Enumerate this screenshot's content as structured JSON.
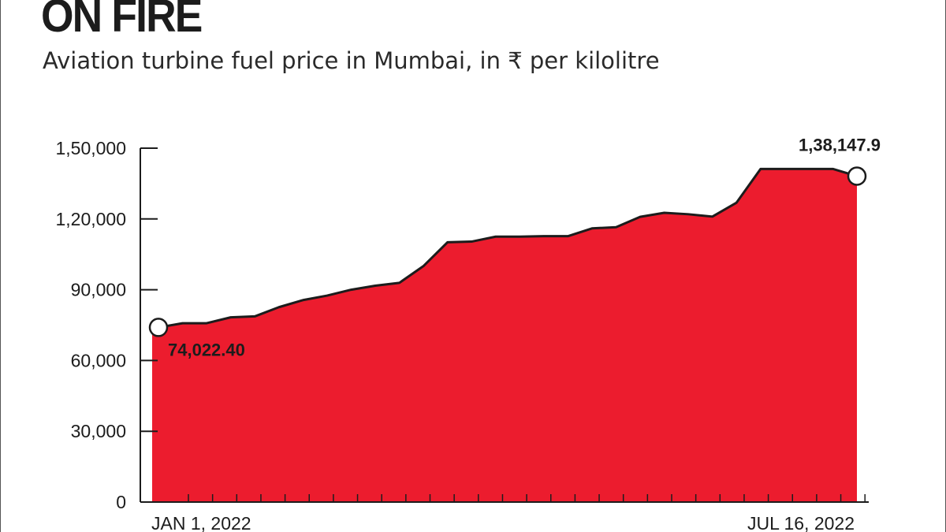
{
  "header": {
    "title": "ON FIRE",
    "subtitle": "Aviation turbine fuel price in Mumbai, in ₹ per kilolitre"
  },
  "colors": {
    "fill": "#ec1c2e",
    "line": "#1c1c1c",
    "marker_fill": "#ffffff"
  },
  "chart_data": {
    "type": "area",
    "title": "ON FIRE",
    "subtitle": "Aviation turbine fuel price in Mumbai, in ₹ per kilolitre",
    "xlabel": "",
    "ylabel": "",
    "ylim": [
      0,
      150000
    ],
    "yticks": [
      0,
      30000,
      60000,
      90000,
      120000,
      150000
    ],
    "ytick_labels": [
      "0",
      "30,000",
      "60,000",
      "90,000",
      "120,000",
      "150,000"
    ],
    "ytick_labels_display": [
      "0",
      "30,000",
      "60,000",
      "90,000",
      "1,20,000",
      "1,50,000"
    ],
    "x_labels": [
      "JAN 1, 2022",
      "JUL 16, 2022"
    ],
    "grid": false,
    "legend": "none",
    "series": [
      {
        "values": [
          74022.4,
          75800,
          75800,
          78300,
          78700,
          82600,
          85600,
          87500,
          90000,
          91700,
          92900,
          100000,
          110100,
          110400,
          112500,
          112500,
          112700,
          112700,
          116000,
          116500,
          120900,
          122600,
          122000,
          121000,
          126900,
          141200,
          141200,
          141200,
          141200,
          138147.9
        ]
      }
    ],
    "annotations": [
      {
        "text": "74,022.40",
        "index": 0,
        "value": 74022.4
      },
      {
        "text": "1,38,147.9",
        "index": 29,
        "value": 138147.9
      }
    ]
  }
}
